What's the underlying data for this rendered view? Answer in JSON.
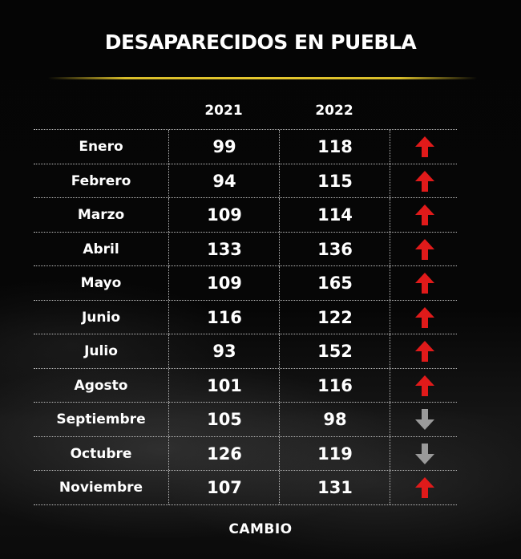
{
  "title": "DESAPARECIDOS EN PUEBLA",
  "logo": "CAMBIO",
  "colors": {
    "up": "#e01a1a",
    "down": "#9a9a9a",
    "accent_rule": "#e6c82e"
  },
  "chart_data": {
    "type": "table",
    "title": "DESAPARECIDOS EN PUEBLA",
    "columns": [
      "2021",
      "2022"
    ],
    "rows": [
      {
        "month": "Enero",
        "y2021": 99,
        "y2022": 118,
        "trend": "up"
      },
      {
        "month": "Febrero",
        "y2021": 94,
        "y2022": 115,
        "trend": "up"
      },
      {
        "month": "Marzo",
        "y2021": 109,
        "y2022": 114,
        "trend": "up"
      },
      {
        "month": "Abril",
        "y2021": 133,
        "y2022": 136,
        "trend": "up"
      },
      {
        "month": "Mayo",
        "y2021": 109,
        "y2022": 165,
        "trend": "up"
      },
      {
        "month": "Junio",
        "y2021": 116,
        "y2022": 122,
        "trend": "up"
      },
      {
        "month": "Julio",
        "y2021": 93,
        "y2022": 152,
        "trend": "up"
      },
      {
        "month": "Agosto",
        "y2021": 101,
        "y2022": 116,
        "trend": "up"
      },
      {
        "month": "Septiembre",
        "y2021": 105,
        "y2022": 98,
        "trend": "down"
      },
      {
        "month": "Octubre",
        "y2021": 126,
        "y2022": 119,
        "trend": "down"
      },
      {
        "month": "Noviembre",
        "y2021": 107,
        "y2022": 131,
        "trend": "up"
      }
    ]
  }
}
